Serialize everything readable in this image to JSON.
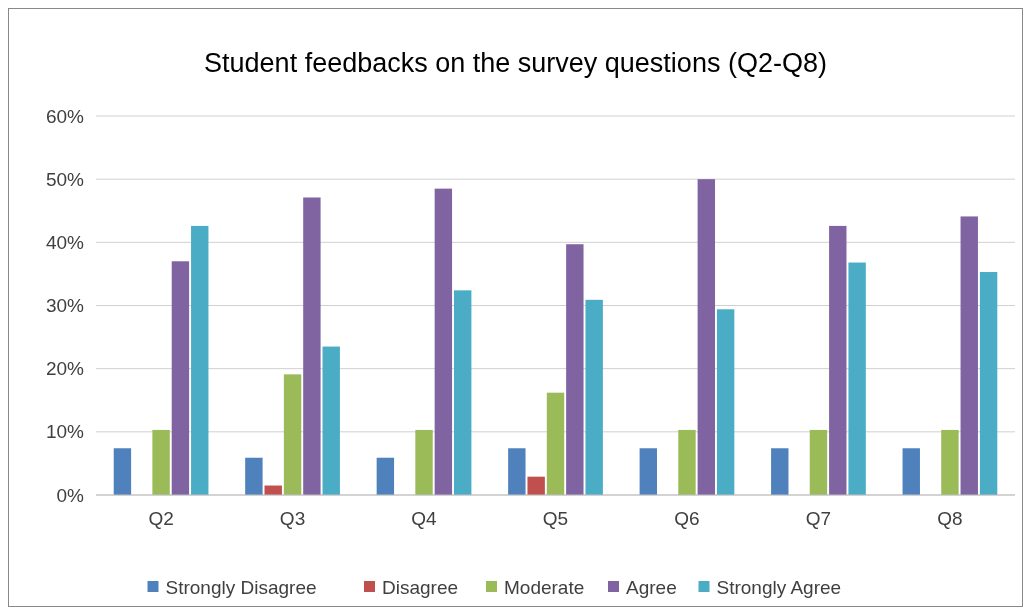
{
  "chart_data": {
    "type": "bar",
    "title": "Student feedbacks on the survey questions (Q2-Q8)",
    "categories": [
      "Q2",
      "Q3",
      "Q4",
      "Q5",
      "Q6",
      "Q7",
      "Q8"
    ],
    "series": [
      {
        "name": "Strongly Disagree",
        "color": "#4f81bd",
        "values": [
          7.4,
          5.9,
          5.9,
          7.4,
          7.4,
          7.4,
          7.4
        ]
      },
      {
        "name": "Disagree",
        "color": "#c0504d",
        "values": [
          0,
          1.5,
          0,
          2.9,
          0,
          0,
          0
        ]
      },
      {
        "name": "Moderate",
        "color": "#9bbb59",
        "values": [
          10.3,
          19.1,
          10.3,
          16.2,
          10.3,
          10.3,
          10.3
        ]
      },
      {
        "name": "Agree",
        "color": "#8064a2",
        "values": [
          37,
          47.1,
          48.5,
          39.7,
          50,
          42.6,
          44.1
        ]
      },
      {
        "name": "Strongly Agree",
        "color": "#4bacc6",
        "values": [
          42.6,
          23.5,
          32.4,
          30.9,
          29.4,
          36.8,
          35.3
        ]
      }
    ],
    "ylim": [
      0,
      60
    ],
    "yticks": [
      {
        "value": 0,
        "label": "0%"
      },
      {
        "value": 10,
        "label": "10%"
      },
      {
        "value": 20,
        "label": "20%"
      },
      {
        "value": 30,
        "label": "30%"
      },
      {
        "value": 40,
        "label": "40%"
      },
      {
        "value": 50,
        "label": "50%"
      },
      {
        "value": 60,
        "label": "60%"
      }
    ],
    "grid": "y",
    "legend": "bottom"
  }
}
